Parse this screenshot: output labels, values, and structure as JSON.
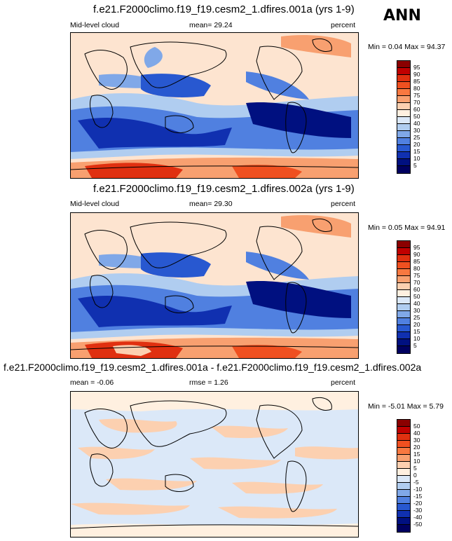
{
  "season": "ANN",
  "panels": [
    {
      "title": "f.e21.F2000climo.f19_f19.cesm2_1.dfires.001a (yrs 1-9)",
      "left_label": "Mid-level cloud",
      "center_label": "mean=  29.24",
      "right_label": "percent",
      "minmax": "Min =   0.04 Max =  94.37",
      "colorbar_labels": [
        "95",
        "90",
        "85",
        "80",
        "75",
        "70",
        "60",
        "50",
        "40",
        "30",
        "25",
        "20",
        "15",
        "10",
        "5"
      ]
    },
    {
      "title": "f.e21.F2000climo.f19_f19.cesm2_1.dfires.002a (yrs 1-9)",
      "left_label": "Mid-level cloud",
      "center_label": "mean=  29.30",
      "right_label": "percent",
      "minmax": "Min =   0.05 Max =  94.91",
      "colorbar_labels": [
        "95",
        "90",
        "85",
        "80",
        "75",
        "70",
        "60",
        "50",
        "40",
        "30",
        "25",
        "20",
        "15",
        "10",
        "5"
      ]
    },
    {
      "title": "f.e21.F2000climo.f19_f19.cesm2_1.dfires.001a - f.e21.F2000climo.f19_f19.cesm2_1.dfires.002a",
      "left_label": "mean =  -0.06",
      "center_label": "rmse =   1.26",
      "right_label": "percent",
      "minmax": "Min =  -5.01 Max =   5.79",
      "colorbar_labels": [
        "50",
        "40",
        "30",
        "20",
        "15",
        "10",
        "5",
        "0",
        "-5",
        "-10",
        "-15",
        "-20",
        "-30",
        "-40",
        "-50"
      ]
    }
  ],
  "colors": {
    "cbar": [
      "#8b0000",
      "#c00000",
      "#e03010",
      "#f05020",
      "#f87840",
      "#f8a070",
      "#fcd0b0",
      "#fff0e0",
      "#dbe8f8",
      "#b0cdf0",
      "#80a8e8",
      "#5080e0",
      "#2858d0",
      "#1030b0",
      "#001080",
      "#000060"
    ],
    "land_outline": "#000000"
  }
}
